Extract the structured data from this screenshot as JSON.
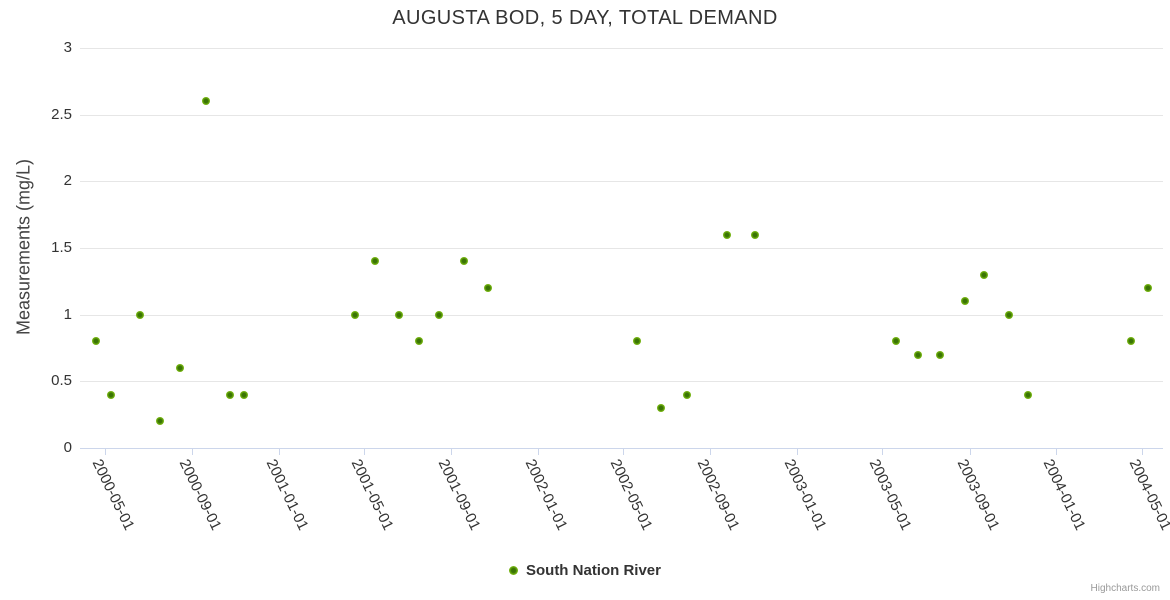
{
  "credits": "Highcharts.com",
  "colors": {
    "marker_inner": "#3a7404",
    "marker_outer": "#8cc51e",
    "grid_line": "#e6e6e6",
    "axis_line": "#ccd6eb",
    "tick_text": "#333333",
    "title_text": "#333333",
    "legend_text": "#333333",
    "credits_text": "#999999",
    "background": "#ffffff"
  },
  "chart_data": {
    "type": "scatter",
    "title": "AUGUSTA BOD, 5 DAY, TOTAL DEMAND",
    "xlabel": "",
    "ylabel": "Measurements (mg/L)",
    "ylim": [
      0,
      3
    ],
    "xlim": [
      "2000-03-27",
      "2004-05-30"
    ],
    "y_ticks": [
      0,
      0.5,
      1,
      1.5,
      2,
      2.5,
      3
    ],
    "x_ticks": [
      "2000-05-01",
      "2000-09-01",
      "2001-01-01",
      "2001-05-01",
      "2001-09-01",
      "2002-01-01",
      "2002-05-01",
      "2002-09-01",
      "2003-01-01",
      "2003-05-01",
      "2003-09-01",
      "2004-01-01",
      "2004-05-01"
    ],
    "x_labels_rotation_deg": 64,
    "grid": true,
    "legend_position": "bottom",
    "marker": {
      "symbol": "circle",
      "radius": 4
    },
    "series": [
      {
        "name": "South Nation River",
        "points": [
          {
            "date": "2000-04-18",
            "value": 0.8
          },
          {
            "date": "2000-05-10",
            "value": 0.4
          },
          {
            "date": "2000-06-20",
            "value": 1.0
          },
          {
            "date": "2000-07-17",
            "value": 0.2
          },
          {
            "date": "2000-08-15",
            "value": 0.6
          },
          {
            "date": "2000-09-20",
            "value": 2.6
          },
          {
            "date": "2000-10-24",
            "value": 0.4
          },
          {
            "date": "2000-11-13",
            "value": 0.4
          },
          {
            "date": "2001-04-18",
            "value": 1.0
          },
          {
            "date": "2001-05-16",
            "value": 1.4
          },
          {
            "date": "2001-06-19",
            "value": 1.0
          },
          {
            "date": "2001-07-17",
            "value": 0.8
          },
          {
            "date": "2001-08-14",
            "value": 1.0
          },
          {
            "date": "2001-09-19",
            "value": 1.4
          },
          {
            "date": "2001-10-23",
            "value": 1.2
          },
          {
            "date": "2002-05-21",
            "value": 0.8
          },
          {
            "date": "2002-06-24",
            "value": 0.3
          },
          {
            "date": "2002-07-30",
            "value": 0.4
          },
          {
            "date": "2002-09-24",
            "value": 1.6
          },
          {
            "date": "2002-11-03",
            "value": 1.6
          },
          {
            "date": "2003-05-20",
            "value": 0.8
          },
          {
            "date": "2003-06-21",
            "value": 0.7
          },
          {
            "date": "2003-07-22",
            "value": 0.7
          },
          {
            "date": "2003-08-25",
            "value": 1.1
          },
          {
            "date": "2003-09-22",
            "value": 1.3
          },
          {
            "date": "2003-10-27",
            "value": 1.0
          },
          {
            "date": "2003-11-23",
            "value": 0.4
          },
          {
            "date": "2004-04-15",
            "value": 0.8
          },
          {
            "date": "2004-05-10",
            "value": 1.2
          }
        ]
      }
    ]
  }
}
